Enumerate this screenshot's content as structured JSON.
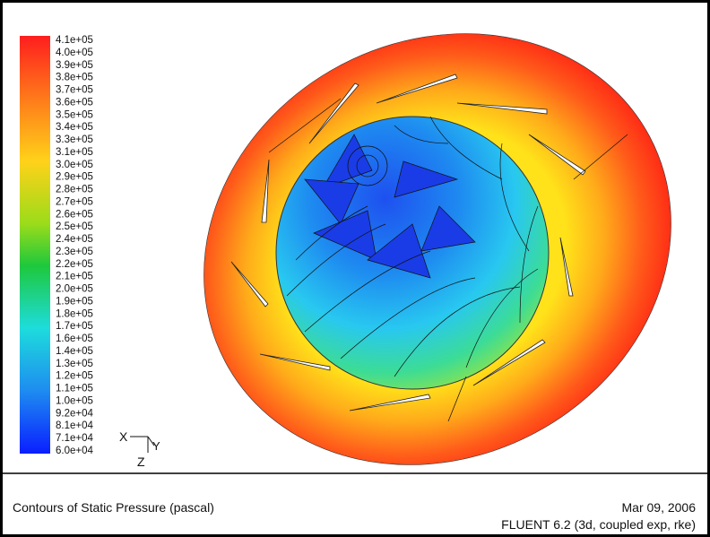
{
  "colorbar": {
    "labels": [
      "4.1e+05",
      "4.0e+05",
      "3.9e+05",
      "3.8e+05",
      "3.7e+05",
      "3.6e+05",
      "3.5e+05",
      "3.4e+05",
      "3.3e+05",
      "3.1e+05",
      "3.0e+05",
      "2.9e+05",
      "2.8e+05",
      "2.7e+05",
      "2.6e+05",
      "2.5e+05",
      "2.4e+05",
      "2.3e+05",
      "2.2e+05",
      "2.1e+05",
      "2.0e+05",
      "1.9e+05",
      "1.8e+05",
      "1.7e+05",
      "1.6e+05",
      "1.4e+05",
      "1.3e+05",
      "1.2e+05",
      "1.1e+05",
      "1.0e+05",
      "9.2e+04",
      "8.1e+04",
      "7.1e+04",
      "6.0e+04"
    ]
  },
  "triad": {
    "x": "X",
    "y": "Y",
    "z": "Z"
  },
  "footer": {
    "title": "Contours of Static Pressure (pascal)",
    "date": "Mar 09, 2006",
    "solver": "FLUENT 6.2 (3d, coupled exp, rke)"
  }
}
